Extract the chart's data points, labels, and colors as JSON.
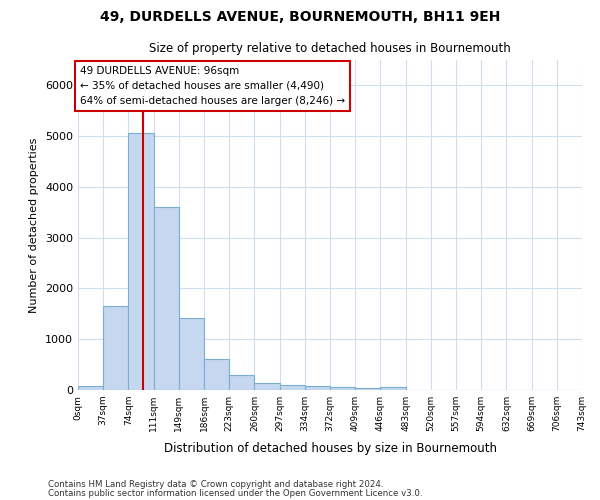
{
  "title": "49, DURDELLS AVENUE, BOURNEMOUTH, BH11 9EH",
  "subtitle": "Size of property relative to detached houses in Bournemouth",
  "xlabel": "Distribution of detached houses by size in Bournemouth",
  "ylabel": "Number of detached properties",
  "footnote1": "Contains HM Land Registry data © Crown copyright and database right 2024.",
  "footnote2": "Contains public sector information licensed under the Open Government Licence v3.0.",
  "bar_values": [
    75,
    1650,
    5060,
    3600,
    1410,
    610,
    290,
    135,
    95,
    75,
    50,
    30,
    50,
    0,
    0,
    0,
    0,
    0,
    0,
    0
  ],
  "x_labels": [
    "0sqm",
    "37sqm",
    "74sqm",
    "111sqm",
    "149sqm",
    "186sqm",
    "223sqm",
    "260sqm",
    "297sqm",
    "334sqm",
    "372sqm",
    "409sqm",
    "446sqm",
    "483sqm",
    "520sqm",
    "557sqm",
    "594sqm",
    "632sqm",
    "669sqm",
    "706sqm",
    "743sqm"
  ],
  "bar_color": "#c5d8ef",
  "bar_edge_color": "#7aafd4",
  "grid_color": "#d0dded",
  "property_line_x": 96,
  "property_line_color": "#cc0000",
  "annotation_text": "49 DURDELLS AVENUE: 96sqm\n← 35% of detached houses are smaller (4,490)\n64% of semi-detached houses are larger (8,246) →",
  "annotation_box_edge_color": "#cc0000",
  "ylim": [
    0,
    6500
  ],
  "bin_width": 37,
  "background_color": "#ffffff",
  "plot_bg_color": "#ffffff"
}
